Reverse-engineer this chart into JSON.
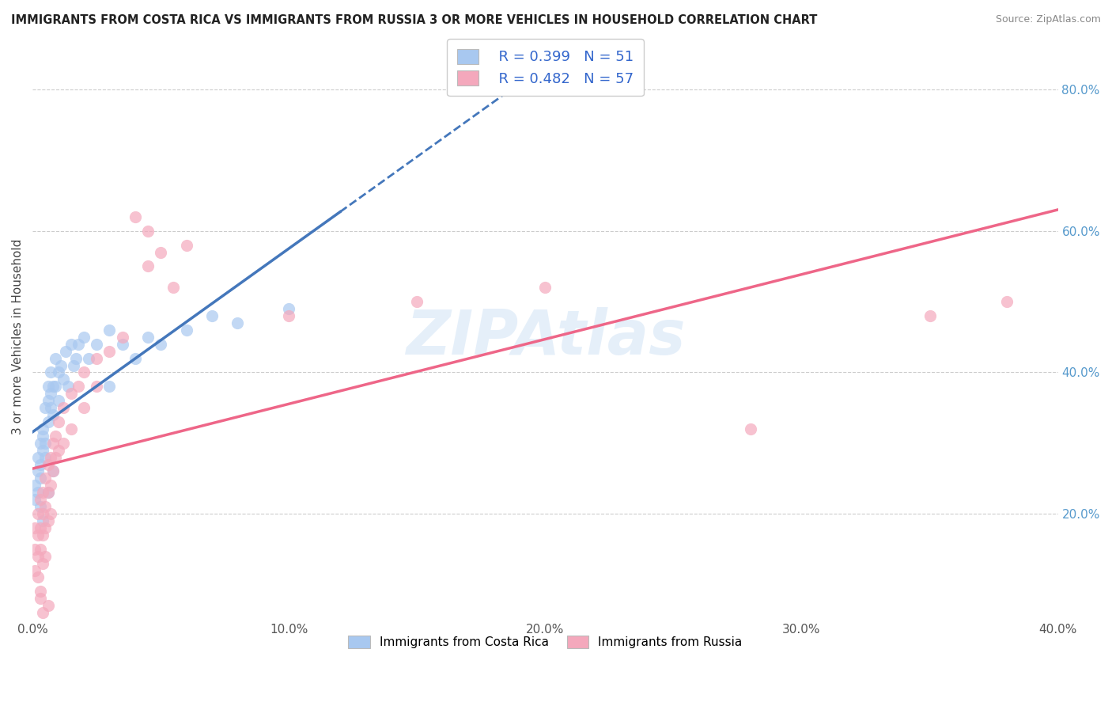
{
  "title": "IMMIGRANTS FROM COSTA RICA VS IMMIGRANTS FROM RUSSIA 3 OR MORE VEHICLES IN HOUSEHOLD CORRELATION CHART",
  "source": "Source: ZipAtlas.com",
  "ylabel": "3 or more Vehicles in Household",
  "xlim": [
    0.0,
    0.4
  ],
  "ylim": [
    0.05,
    0.85
  ],
  "xtick_labels": [
    "0.0%",
    "10.0%",
    "20.0%",
    "30.0%",
    "40.0%"
  ],
  "xtick_values": [
    0.0,
    0.1,
    0.2,
    0.3,
    0.4
  ],
  "ytick_labels": [
    "20.0%",
    "40.0%",
    "60.0%",
    "80.0%"
  ],
  "ytick_values": [
    0.2,
    0.4,
    0.6,
    0.8
  ],
  "watermark": "ZIPAtlas",
  "legend_R_costa_rica": "R = 0.399",
  "legend_N_costa_rica": "N = 51",
  "legend_R_russia": "R = 0.482",
  "legend_N_russia": "N = 57",
  "costa_rica_color": "#a8c8f0",
  "russia_color": "#f4a8bc",
  "costa_rica_line_color": "#4477bb",
  "russia_line_color": "#ee6688",
  "costa_rica_scatter": [
    [
      0.001,
      0.24
    ],
    [
      0.001,
      0.22
    ],
    [
      0.002,
      0.26
    ],
    [
      0.002,
      0.28
    ],
    [
      0.002,
      0.23
    ],
    [
      0.003,
      0.3
    ],
    [
      0.003,
      0.27
    ],
    [
      0.003,
      0.25
    ],
    [
      0.004,
      0.32
    ],
    [
      0.004,
      0.29
    ],
    [
      0.004,
      0.31
    ],
    [
      0.005,
      0.35
    ],
    [
      0.005,
      0.3
    ],
    [
      0.005,
      0.28
    ],
    [
      0.006,
      0.38
    ],
    [
      0.006,
      0.33
    ],
    [
      0.006,
      0.36
    ],
    [
      0.007,
      0.4
    ],
    [
      0.007,
      0.37
    ],
    [
      0.007,
      0.35
    ],
    [
      0.008,
      0.38
    ],
    [
      0.008,
      0.34
    ],
    [
      0.009,
      0.42
    ],
    [
      0.009,
      0.38
    ],
    [
      0.01,
      0.4
    ],
    [
      0.01,
      0.36
    ],
    [
      0.011,
      0.41
    ],
    [
      0.012,
      0.39
    ],
    [
      0.013,
      0.43
    ],
    [
      0.014,
      0.38
    ],
    [
      0.015,
      0.44
    ],
    [
      0.016,
      0.41
    ],
    [
      0.017,
      0.42
    ],
    [
      0.018,
      0.44
    ],
    [
      0.02,
      0.45
    ],
    [
      0.022,
      0.42
    ],
    [
      0.025,
      0.44
    ],
    [
      0.03,
      0.38
    ],
    [
      0.03,
      0.46
    ],
    [
      0.035,
      0.44
    ],
    [
      0.04,
      0.42
    ],
    [
      0.045,
      0.45
    ],
    [
      0.05,
      0.44
    ],
    [
      0.06,
      0.46
    ],
    [
      0.07,
      0.48
    ],
    [
      0.08,
      0.47
    ],
    [
      0.1,
      0.49
    ],
    [
      0.003,
      0.21
    ],
    [
      0.004,
      0.19
    ],
    [
      0.006,
      0.23
    ],
    [
      0.008,
      0.26
    ]
  ],
  "russia_scatter": [
    [
      0.001,
      0.18
    ],
    [
      0.001,
      0.15
    ],
    [
      0.001,
      0.12
    ],
    [
      0.002,
      0.2
    ],
    [
      0.002,
      0.17
    ],
    [
      0.002,
      0.14
    ],
    [
      0.002,
      0.11
    ],
    [
      0.003,
      0.22
    ],
    [
      0.003,
      0.18
    ],
    [
      0.003,
      0.15
    ],
    [
      0.003,
      0.09
    ],
    [
      0.004,
      0.23
    ],
    [
      0.004,
      0.2
    ],
    [
      0.004,
      0.17
    ],
    [
      0.004,
      0.13
    ],
    [
      0.005,
      0.25
    ],
    [
      0.005,
      0.21
    ],
    [
      0.005,
      0.18
    ],
    [
      0.005,
      0.14
    ],
    [
      0.006,
      0.27
    ],
    [
      0.006,
      0.23
    ],
    [
      0.006,
      0.19
    ],
    [
      0.007,
      0.28
    ],
    [
      0.007,
      0.24
    ],
    [
      0.007,
      0.2
    ],
    [
      0.008,
      0.3
    ],
    [
      0.008,
      0.26
    ],
    [
      0.009,
      0.31
    ],
    [
      0.009,
      0.28
    ],
    [
      0.01,
      0.33
    ],
    [
      0.01,
      0.29
    ],
    [
      0.012,
      0.35
    ],
    [
      0.012,
      0.3
    ],
    [
      0.015,
      0.37
    ],
    [
      0.015,
      0.32
    ],
    [
      0.018,
      0.38
    ],
    [
      0.02,
      0.4
    ],
    [
      0.02,
      0.35
    ],
    [
      0.025,
      0.42
    ],
    [
      0.025,
      0.38
    ],
    [
      0.03,
      0.43
    ],
    [
      0.035,
      0.45
    ],
    [
      0.04,
      0.62
    ],
    [
      0.045,
      0.6
    ],
    [
      0.045,
      0.55
    ],
    [
      0.05,
      0.57
    ],
    [
      0.055,
      0.52
    ],
    [
      0.06,
      0.58
    ],
    [
      0.1,
      0.48
    ],
    [
      0.15,
      0.5
    ],
    [
      0.2,
      0.52
    ],
    [
      0.28,
      0.32
    ],
    [
      0.35,
      0.48
    ],
    [
      0.38,
      0.5
    ],
    [
      0.003,
      0.08
    ],
    [
      0.004,
      0.06
    ],
    [
      0.006,
      0.07
    ]
  ]
}
